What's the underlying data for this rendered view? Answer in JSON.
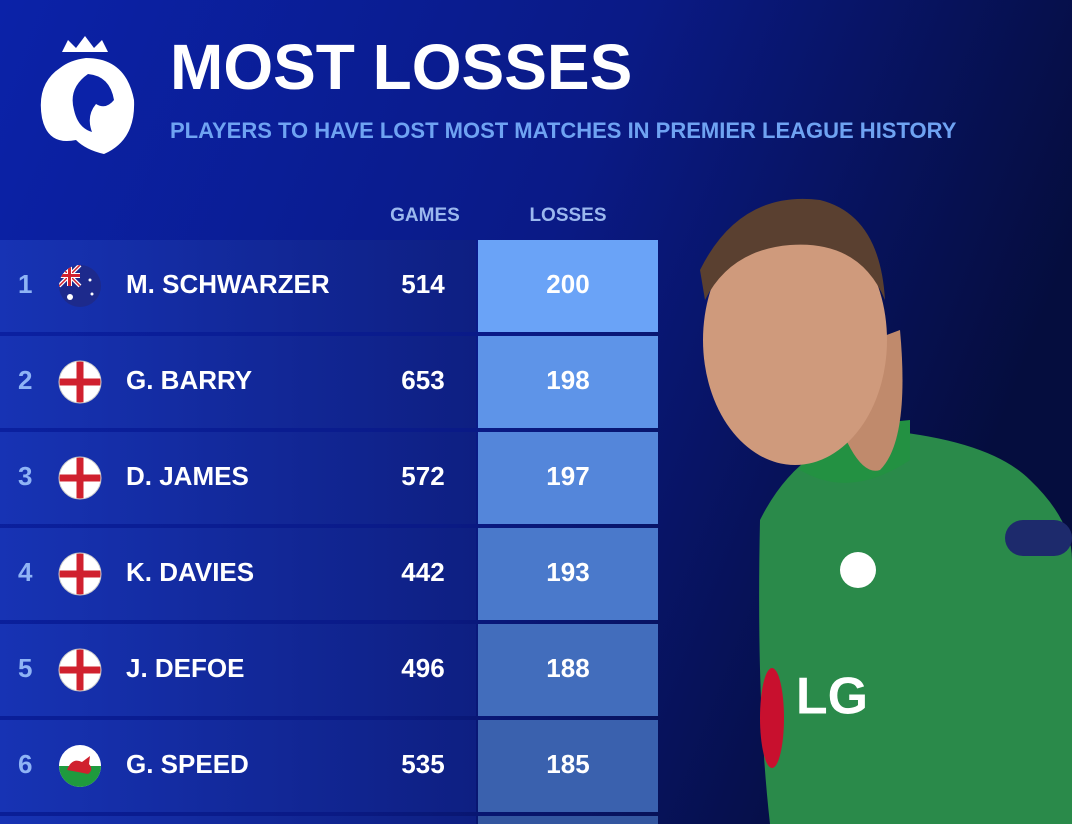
{
  "header": {
    "title": "MOST LOSSES",
    "subtitle": "PLAYERS TO HAVE LOST MOST MATCHES IN PREMIER LEAGUE HISTORY"
  },
  "table": {
    "columns": [
      "GAMES",
      "LOSSES"
    ],
    "rows": [
      {
        "rank": 1,
        "player": "M. SCHWARZER",
        "games": 514,
        "losses": 200
      },
      {
        "rank": 2,
        "player": "G. BARRY",
        "games": 653,
        "losses": 198
      },
      {
        "rank": 3,
        "player": "D. JAMES",
        "games": 572,
        "losses": 197
      },
      {
        "rank": 4,
        "player": "K. DAVIES",
        "games": 442,
        "losses": 193
      },
      {
        "rank": 5,
        "player": "J. DEFOE",
        "games": 496,
        "losses": 188
      },
      {
        "rank": 6,
        "player": "G. SPEED",
        "games": 535,
        "losses": 185
      }
    ]
  },
  "photo": {
    "shirt_text": "LG"
  }
}
